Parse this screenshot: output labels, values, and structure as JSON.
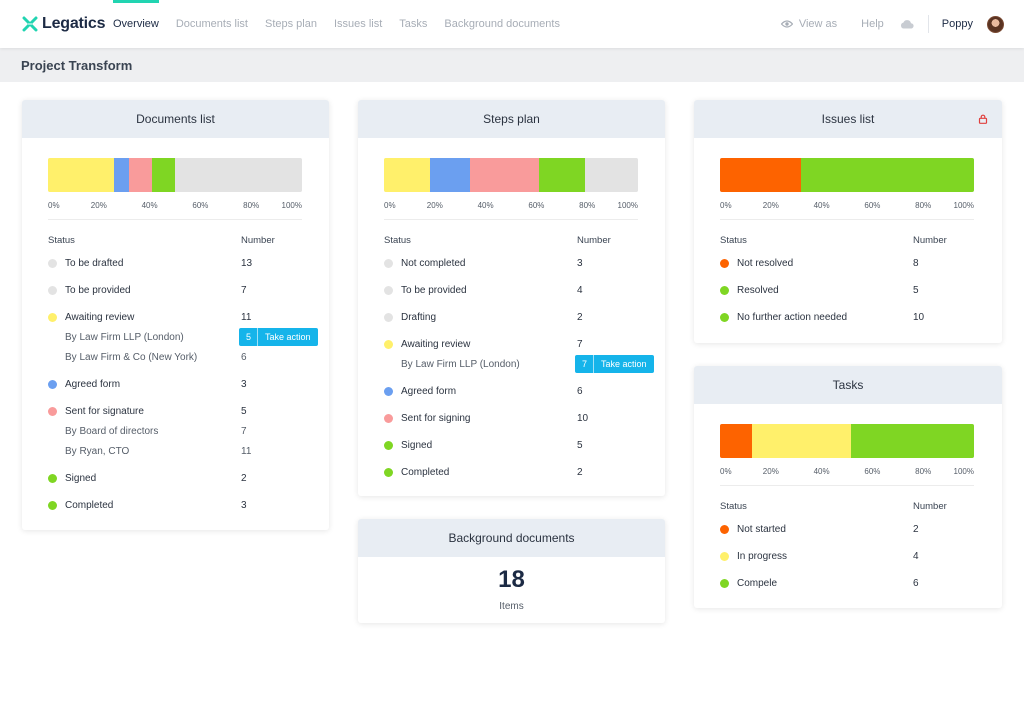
{
  "app": {
    "logo_text": "Legatics",
    "logo_icon": "legatics-x-icon"
  },
  "nav": {
    "links": [
      "Overview",
      "Documents list",
      "Steps plan",
      "Issues list",
      "Tasks",
      "Background documents"
    ],
    "active": "Overview",
    "view_as": "View as",
    "help": "Help",
    "user": "Poppy"
  },
  "project": {
    "title": "Project Transform"
  },
  "colors": {
    "yellow": "#fff06b",
    "blue": "#6b9ff0",
    "pink": "#f99b9b",
    "green": "#7fd623",
    "orange": "#fd6300",
    "grey": "#e3e3e3",
    "accent": "#21d4b1",
    "action": "#15b4ea"
  },
  "ticks": [
    "0%",
    "20%",
    "40%",
    "60%",
    "80%",
    "100%"
  ],
  "documents": {
    "title": "Documents list",
    "col_status": "Status",
    "col_number": "Number",
    "bar": [
      {
        "color": "yellow",
        "pct": 26
      },
      {
        "color": "blue",
        "pct": 6
      },
      {
        "color": "pink",
        "pct": 9
      },
      {
        "color": "green",
        "pct": 9
      },
      {
        "color": "grey",
        "pct": 50
      }
    ],
    "rows": [
      {
        "label": "To be drafted",
        "value": "13",
        "dot": "grey"
      },
      {
        "label": "To be provided",
        "value": "7",
        "dot": "grey"
      },
      {
        "label": "Awaiting review",
        "value": "11",
        "dot": "yellow"
      },
      {
        "label": "By Law Firm LLP (London)",
        "value": "",
        "sub": true,
        "action_count": "5",
        "action_label": "Take action"
      },
      {
        "label": "By Law Firm & Co (New York)",
        "value": "6",
        "sub": true
      },
      {
        "label": "Agreed form",
        "value": "3",
        "dot": "blue"
      },
      {
        "label": "Sent for signature",
        "value": "5",
        "dot": "pink"
      },
      {
        "label": "By Board of directors",
        "value": "7",
        "sub": true
      },
      {
        "label": "By Ryan, CTO",
        "value": "11",
        "sub": true
      },
      {
        "label": "Signed",
        "value": "2",
        "dot": "green"
      },
      {
        "label": "Completed",
        "value": "3",
        "dot": "green"
      }
    ]
  },
  "steps": {
    "title": "Steps plan",
    "col_status": "Status",
    "col_number": "Number",
    "bar": [
      {
        "color": "yellow",
        "pct": 18
      },
      {
        "color": "blue",
        "pct": 16
      },
      {
        "color": "pink",
        "pct": 27
      },
      {
        "color": "green",
        "pct": 18
      },
      {
        "color": "grey",
        "pct": 21
      }
    ],
    "rows": [
      {
        "label": "Not completed",
        "value": "3",
        "dot": "grey"
      },
      {
        "label": "To be provided",
        "value": "4",
        "dot": "grey"
      },
      {
        "label": "Drafting",
        "value": "2",
        "dot": "grey"
      },
      {
        "label": "Awaiting review",
        "value": "7",
        "dot": "yellow"
      },
      {
        "label": "By Law Firm LLP (London)",
        "value": "",
        "sub": true,
        "action_count": "7",
        "action_label": "Take action"
      },
      {
        "label": "Agreed form",
        "value": "6",
        "dot": "blue"
      },
      {
        "label": "Sent for signing",
        "value": "10",
        "dot": "pink"
      },
      {
        "label": "Signed",
        "value": "5",
        "dot": "green"
      },
      {
        "label": "Completed",
        "value": "2",
        "dot": "green"
      }
    ]
  },
  "issues": {
    "title": "Issues list",
    "col_status": "Status",
    "col_number": "Number",
    "bar": [
      {
        "color": "orange",
        "pct": 32
      },
      {
        "color": "green",
        "pct": 68
      }
    ],
    "rows": [
      {
        "label": "Not resolved",
        "value": "8",
        "dot": "orange"
      },
      {
        "label": "Resolved",
        "value": "5",
        "dot": "green"
      },
      {
        "label": "No further action needed",
        "value": "10",
        "dot": "green"
      }
    ]
  },
  "tasks": {
    "title": "Tasks",
    "col_status": "Status",
    "col_number": "Number",
    "bar": [
      {
        "color": "orange",
        "pct": 12.5
      },
      {
        "color": "yellow",
        "pct": 39
      },
      {
        "color": "green",
        "pct": 48.5
      }
    ],
    "rows": [
      {
        "label": "Not started",
        "value": "2",
        "dot": "orange"
      },
      {
        "label": "In progress",
        "value": "4",
        "dot": "yellow"
      },
      {
        "label": "Compele",
        "value": "6",
        "dot": "green"
      }
    ]
  },
  "background": {
    "title": "Background documents",
    "count": "18",
    "unit": "Items"
  }
}
